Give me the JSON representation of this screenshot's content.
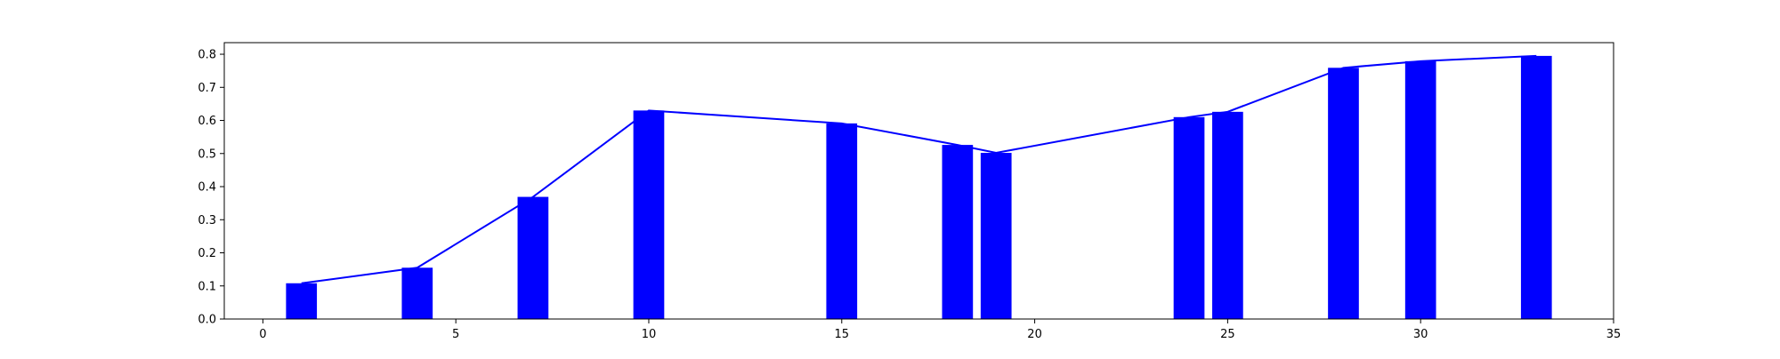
{
  "chart_data": {
    "type": "bar",
    "x": [
      1,
      4,
      7,
      10,
      15,
      18,
      19,
      24,
      25,
      28,
      30,
      33
    ],
    "values": [
      0.108,
      0.155,
      0.369,
      0.63,
      0.591,
      0.526,
      0.502,
      0.61,
      0.626,
      0.759,
      0.779,
      0.795
    ],
    "overlay_line": true,
    "title": "",
    "xlabel": "",
    "ylabel": "",
    "xlim": [
      -1,
      35
    ],
    "ylim": [
      0,
      0.835
    ],
    "xticks": [
      0,
      5,
      10,
      15,
      20,
      25,
      30,
      35
    ],
    "yticks": [
      0.0,
      0.1,
      0.2,
      0.3,
      0.4,
      0.5,
      0.6,
      0.7,
      0.8
    ],
    "grid": false,
    "legend": "none",
    "colors": {
      "bar": "#0000ff",
      "line": "#0000ff",
      "axis": "#000000"
    }
  }
}
